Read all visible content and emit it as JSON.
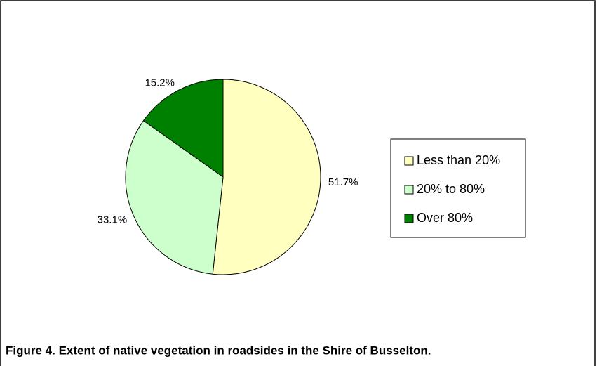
{
  "chart_data": {
    "type": "pie",
    "title": "Figure 4. Extent of native vegetation in roadsides in the Shire of Busselton.",
    "categories": [
      "Less than 20%",
      "20% to 80%",
      "Over 80%"
    ],
    "values": [
      51.7,
      33.1,
      15.2
    ],
    "value_labels": [
      "51.7%",
      "33.1%",
      "15.2%"
    ],
    "colors": [
      "#ffffc0",
      "#ccffcc",
      "#008000"
    ],
    "legend": "right"
  }
}
